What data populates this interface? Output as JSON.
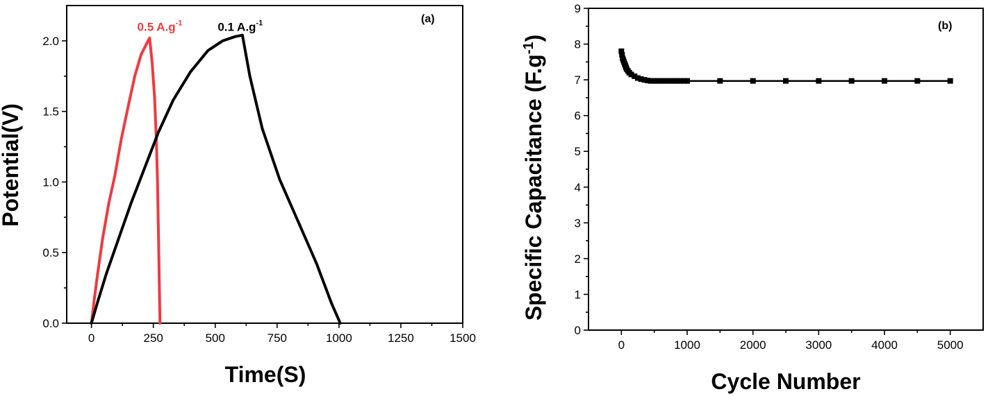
{
  "chart_data": [
    {
      "type": "line",
      "panel_label": "(a)",
      "xlabel": "Time(S)",
      "ylabel": "Potential(V)",
      "xlim": [
        -100,
        1500
      ],
      "ylim": [
        0.0,
        2.25
      ],
      "xticks": [
        0,
        250,
        500,
        750,
        1000,
        1250,
        1500
      ],
      "yticks": [
        0.0,
        0.5,
        1.0,
        1.5,
        2.0
      ],
      "xtick_labels": [
        "0",
        "250",
        "500",
        "750",
        "1000",
        "1250",
        "1500"
      ],
      "ytick_labels": [
        "0.0",
        "0.5",
        "1.0",
        "1.5",
        "2.0"
      ],
      "grid": false,
      "series": [
        {
          "label_main": "0.5 A.g",
          "label_sup": "-1",
          "color": "#ef3a3f",
          "label_anchor": [
            185,
            2.07
          ],
          "points": [
            [
              0,
              0
            ],
            [
              10,
              0.15
            ],
            [
              25,
              0.35
            ],
            [
              45,
              0.6
            ],
            [
              70,
              0.85
            ],
            [
              95,
              1.05
            ],
            [
              120,
              1.3
            ],
            [
              150,
              1.55
            ],
            [
              175,
              1.75
            ],
            [
              200,
              1.9
            ],
            [
              220,
              1.97
            ],
            [
              235,
              2.02
            ],
            [
              245,
              1.85
            ],
            [
              255,
              1.6
            ],
            [
              262,
              1.3
            ],
            [
              267,
              1.0
            ],
            [
              271,
              0.6
            ],
            [
              274,
              0.3
            ],
            [
              277,
              0.0
            ]
          ]
        },
        {
          "label_main": "0.1 A.g",
          "label_sup": "-1",
          "color": "#000000",
          "label_anchor": [
            510,
            2.07
          ],
          "points": [
            [
              0,
              0
            ],
            [
              25,
              0.15
            ],
            [
              60,
              0.35
            ],
            [
              110,
              0.6
            ],
            [
              160,
              0.85
            ],
            [
              215,
              1.1
            ],
            [
              270,
              1.35
            ],
            [
              330,
              1.58
            ],
            [
              400,
              1.78
            ],
            [
              470,
              1.93
            ],
            [
              530,
              2.0
            ],
            [
              580,
              2.03
            ],
            [
              610,
              2.04
            ],
            [
              640,
              1.75
            ],
            [
              690,
              1.38
            ],
            [
              760,
              1.02
            ],
            [
              840,
              0.7
            ],
            [
              910,
              0.42
            ],
            [
              970,
              0.14
            ],
            [
              1005,
              0.0
            ]
          ]
        }
      ]
    },
    {
      "type": "line",
      "panel_label": "(b)",
      "xlabel": "Cycle Number",
      "ylabel_main": "Specific Capacitance (F.g",
      "ylabel_sup": "-1",
      "ylabel_end": ")",
      "xlim": [
        -500,
        5500
      ],
      "ylim": [
        0,
        9
      ],
      "xticks": [
        0,
        1000,
        2000,
        3000,
        4000,
        5000
      ],
      "yticks": [
        0,
        1,
        2,
        3,
        4,
        5,
        6,
        7,
        8,
        9
      ],
      "xtick_labels": [
        "0",
        "1000",
        "2000",
        "3000",
        "4000",
        "5000"
      ],
      "ytick_labels": [
        "0",
        "1",
        "2",
        "3",
        "4",
        "5",
        "6",
        "7",
        "8",
        "9"
      ],
      "grid": false,
      "series": [
        {
          "marker": "square",
          "color": "#000000",
          "points": [
            [
              0,
              7.8
            ],
            [
              10,
              7.7
            ],
            [
              20,
              7.6
            ],
            [
              30,
              7.55
            ],
            [
              40,
              7.5
            ],
            [
              50,
              7.45
            ],
            [
              60,
              7.4
            ],
            [
              70,
              7.35
            ],
            [
              80,
              7.3
            ],
            [
              100,
              7.25
            ],
            [
              120,
              7.2
            ],
            [
              150,
              7.15
            ],
            [
              200,
              7.1
            ],
            [
              250,
              7.05
            ],
            [
              300,
              7.02
            ],
            [
              350,
              7.0
            ],
            [
              400,
              6.98
            ],
            [
              450,
              6.97
            ],
            [
              500,
              6.97
            ],
            [
              550,
              6.97
            ],
            [
              600,
              6.97
            ],
            [
              650,
              6.97
            ],
            [
              700,
              6.97
            ],
            [
              750,
              6.97
            ],
            [
              800,
              6.97
            ],
            [
              850,
              6.97
            ],
            [
              900,
              6.97
            ],
            [
              950,
              6.97
            ],
            [
              1000,
              6.97
            ],
            [
              1500,
              6.97
            ],
            [
              2000,
              6.97
            ],
            [
              2500,
              6.97
            ],
            [
              3000,
              6.97
            ],
            [
              3500,
              6.97
            ],
            [
              4000,
              6.97
            ],
            [
              4500,
              6.97
            ],
            [
              5000,
              6.97
            ]
          ]
        }
      ]
    }
  ]
}
